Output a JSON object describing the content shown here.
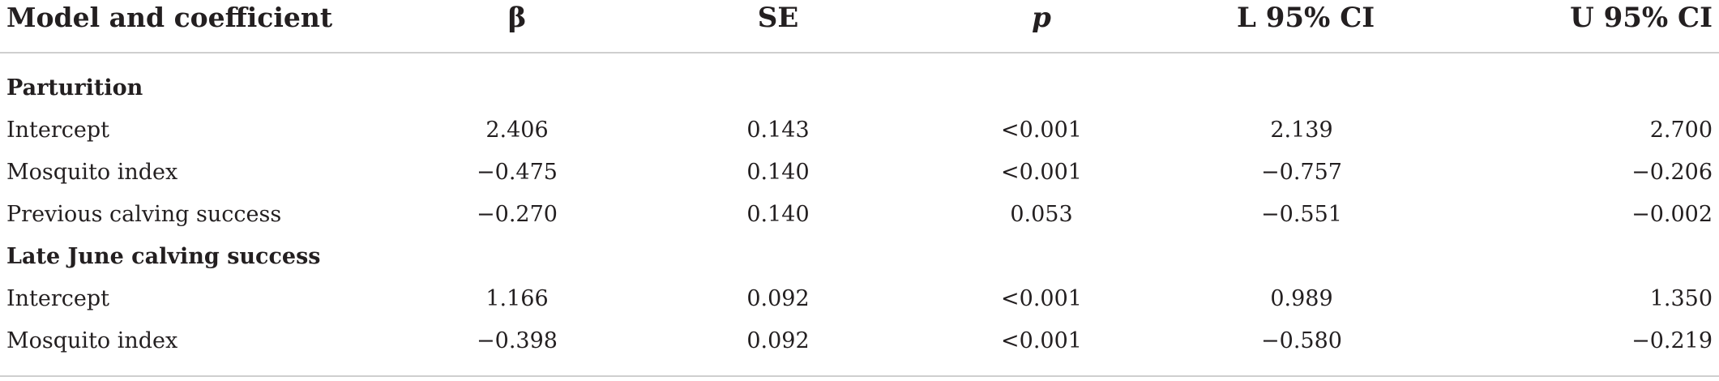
{
  "table": {
    "headers": [
      "Model and coefficient",
      "β",
      "SE",
      "p",
      "L 95% CI",
      "U 95% CI"
    ],
    "sections": [
      {
        "title": "Parturition",
        "rows": [
          [
            "Intercept",
            "2.406",
            "0.143",
            "<0.001",
            "2.139",
            "2.700"
          ],
          [
            "Mosquito index",
            "−0.475",
            "0.140",
            "<0.001",
            "−0.757",
            "−0.206"
          ],
          [
            "Previous calving success",
            "−0.270",
            "0.140",
            "0.053",
            "−0.551",
            "−0.002"
          ]
        ]
      },
      {
        "title": "Late June calving success",
        "rows": [
          [
            "Intercept",
            "1.166",
            "0.092",
            "<0.001",
            "0.989",
            "1.350"
          ],
          [
            "Mosquito index",
            "−0.398",
            "0.092",
            "<0.001",
            "−0.580",
            "−0.219"
          ]
        ]
      }
    ]
  }
}
